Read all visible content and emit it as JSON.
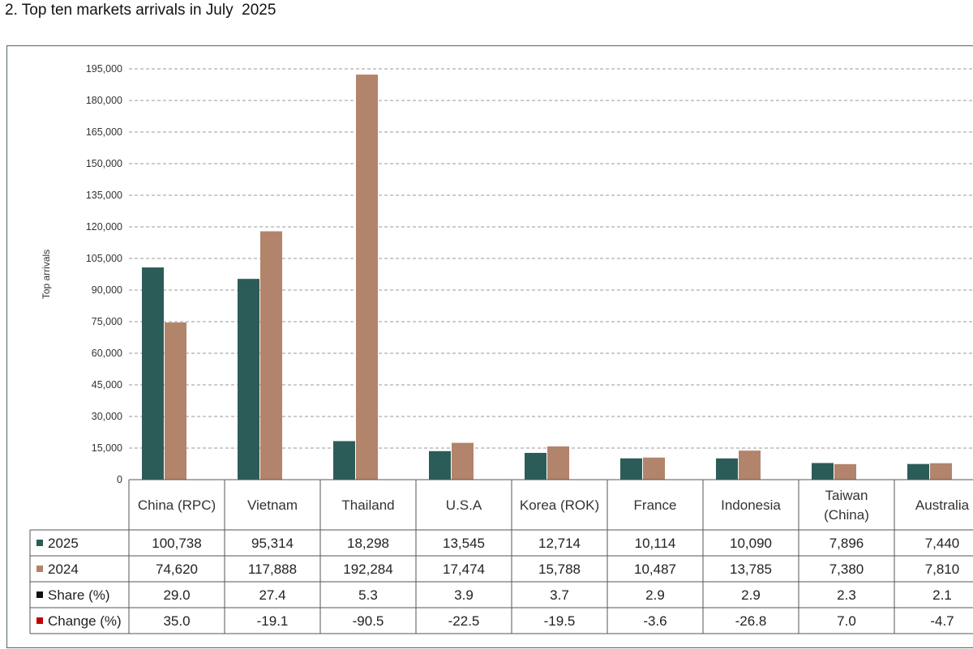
{
  "title": "2. Top ten markets arrivals in July  2025",
  "chart_data": {
    "type": "bar",
    "ylabel": "Top arrivals",
    "ylim": [
      0,
      195000
    ],
    "yticks": [
      "0",
      "15,000",
      "30,000",
      "45,000",
      "60,000",
      "75,000",
      "90,000",
      "105,000",
      "120,000",
      "135,000",
      "150,000",
      "165,000",
      "180,000",
      "195,000"
    ],
    "grid": true,
    "categories": [
      "China (RPC)",
      "Vietnam",
      "Thailand",
      "U.S.A",
      "Korea (ROK)",
      "France",
      "Indonesia",
      "Taiwan (China)",
      "Australia"
    ],
    "category_lines": [
      [
        "China (RPC)"
      ],
      [
        "Vietnam"
      ],
      [
        "Thailand"
      ],
      [
        "U.S.A"
      ],
      [
        "Korea (ROK)"
      ],
      [
        "France"
      ],
      [
        "Indonesia"
      ],
      [
        "Taiwan",
        "(China)"
      ],
      [
        "Australia"
      ]
    ],
    "series": [
      {
        "name": "2025",
        "color": "#2c5c58",
        "values": [
          100738,
          95314,
          18298,
          13545,
          12714,
          10114,
          10090,
          7896,
          7440
        ]
      },
      {
        "name": "2024",
        "color": "#b2846b",
        "values": [
          74620,
          117888,
          192284,
          17474,
          15788,
          10487,
          13785,
          7380,
          7810
        ]
      }
    ],
    "table": {
      "rows": [
        {
          "label": "2025",
          "marker_color": "#2c5c58",
          "cells": [
            "100,738",
            "95,314",
            "18,298",
            "13,545",
            "12,714",
            "10,114",
            "10,090",
            "7,896",
            "7,440"
          ]
        },
        {
          "label": "2024",
          "marker_color": "#b2846b",
          "cells": [
            "74,620",
            "117,888",
            "192,284",
            "17,474",
            "15,788",
            "10,487",
            "13,785",
            "7,380",
            "7,810"
          ]
        },
        {
          "label": "Share (%)",
          "marker_color": "#111111",
          "cells": [
            "29.0",
            "27.4",
            "5.3",
            "3.9",
            "3.7",
            "2.9",
            "2.9",
            "2.3",
            "2.1"
          ]
        },
        {
          "label": "Change (%)",
          "marker_color": "#c00000",
          "cells": [
            "35.0",
            "-19.1",
            "-90.5",
            "-22.5",
            "-19.5",
            "-3.6",
            "-26.8",
            "7.0",
            "-4.7"
          ]
        }
      ]
    }
  }
}
